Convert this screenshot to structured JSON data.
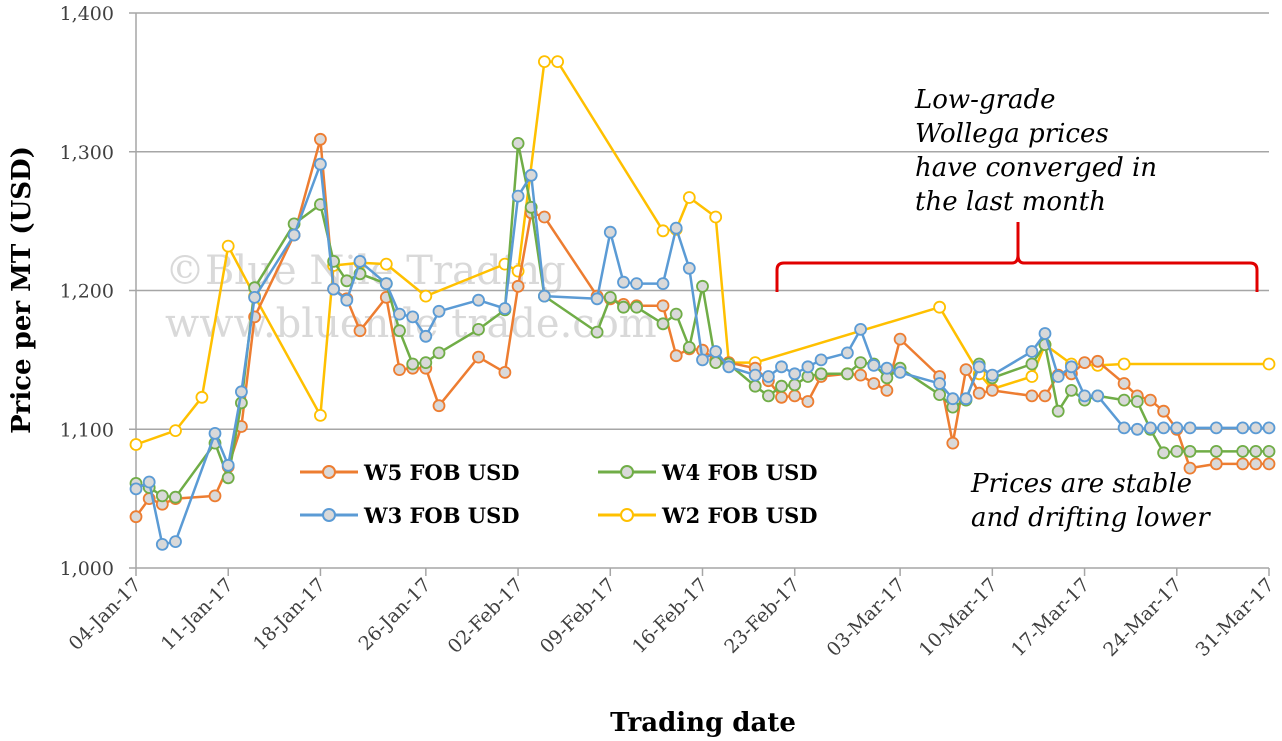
{
  "watermark": {
    "line1": "©Blue Nile Trading",
    "line2": "www.bluenile trade.com"
  },
  "annotations": {
    "top": [
      "Low-grade",
      "Wollega prices",
      "have converged in",
      "the last month"
    ],
    "bottom": [
      "Prices are stable",
      "and drifting lower"
    ]
  },
  "colors": {
    "W5": "#ED7D31",
    "W4": "#70AD47",
    "W3": "#5B9BD5",
    "W2": "#FFC000",
    "bracket": "#E00000",
    "grid": "#A6A6A6"
  },
  "chart_data": {
    "type": "line",
    "title": "",
    "xlabel": "Trading date",
    "ylabel": "Price per MT (USD)",
    "ylim": [
      1000,
      1400
    ],
    "yticks": [
      "1,000",
      "1,100",
      "1,200",
      "1,300",
      "1,400"
    ],
    "grid": true,
    "legend_position": "lower-left",
    "xticks": [
      {
        "label": "04-Jan-17",
        "date": "2017-01-04"
      },
      {
        "label": "11-Jan-17",
        "date": "2017-01-11"
      },
      {
        "label": "18-Jan-17",
        "date": "2017-01-18"
      },
      {
        "label": "26-Jan-17",
        "date": "2017-01-26"
      },
      {
        "label": "02-Feb-17",
        "date": "2017-02-02"
      },
      {
        "label": "09-Feb-17",
        "date": "2017-02-09"
      },
      {
        "label": "16-Feb-17",
        "date": "2017-02-16"
      },
      {
        "label": "23-Feb-17",
        "date": "2017-02-23"
      },
      {
        "label": "03-Mar-17",
        "date": "2017-03-03"
      },
      {
        "label": "10-Mar-17",
        "date": "2017-03-10"
      },
      {
        "label": "17-Mar-17",
        "date": "2017-03-17"
      },
      {
        "label": "24-Mar-17",
        "date": "2017-03-24"
      },
      {
        "label": "31-Mar-17",
        "date": "2017-03-31"
      }
    ],
    "series": [
      {
        "name": "W5 FOB USD",
        "key": "W5",
        "x": [
          "2017-01-04",
          "2017-01-05",
          "2017-01-06",
          "2017-01-07",
          "2017-01-10",
          "2017-01-11",
          "2017-01-12",
          "2017-01-13",
          "2017-01-16",
          "2017-01-18",
          "2017-01-19",
          "2017-01-20",
          "2017-01-21",
          "2017-01-23",
          "2017-01-24",
          "2017-01-25",
          "2017-01-26",
          "2017-01-27",
          "2017-01-30",
          "2017-02-01",
          "2017-02-02",
          "2017-02-03",
          "2017-02-04",
          "2017-02-08",
          "2017-02-09",
          "2017-02-10",
          "2017-02-11",
          "2017-02-13",
          "2017-02-14",
          "2017-02-15",
          "2017-02-16",
          "2017-02-17",
          "2017-02-18",
          "2017-02-20",
          "2017-02-21",
          "2017-02-22",
          "2017-02-23",
          "2017-02-24",
          "2017-02-25",
          "2017-02-27",
          "2017-02-28",
          "2017-03-01",
          "2017-03-02",
          "2017-03-03",
          "2017-03-06",
          "2017-03-07",
          "2017-03-08",
          "2017-03-09",
          "2017-03-10",
          "2017-03-13",
          "2017-03-14",
          "2017-03-15",
          "2017-03-16",
          "2017-03-17",
          "2017-03-18",
          "2017-03-20",
          "2017-03-21",
          "2017-03-22",
          "2017-03-23",
          "2017-03-24",
          "2017-03-25",
          "2017-03-27",
          "2017-03-29",
          "2017-03-30",
          "2017-03-31"
        ],
        "values": [
          1037,
          1050,
          1046,
          1050,
          1052,
          1073,
          1102,
          1181,
          1240,
          1309,
          1201,
          1194,
          1171,
          1195,
          1143,
          1144,
          1144,
          1117,
          1152,
          1141,
          1203,
          1256,
          1253,
          1196,
          1194,
          1190,
          1189,
          1189,
          1153,
          1158,
          1157,
          1150,
          1148,
          1144,
          1135,
          1123,
          1124,
          1120,
          1138,
          1140,
          1139,
          1133,
          1128,
          1165,
          1138,
          1090,
          1143,
          1126,
          1128,
          1124,
          1124,
          1139,
          1140,
          1148,
          1149,
          1133,
          1124,
          1121,
          1113,
          1100,
          1072,
          1075,
          1075,
          1075,
          1075
        ]
      },
      {
        "name": "W4 FOB USD",
        "key": "W4",
        "x": [
          "2017-01-04",
          "2017-01-05",
          "2017-01-06",
          "2017-01-07",
          "2017-01-10",
          "2017-01-11",
          "2017-01-12",
          "2017-01-13",
          "2017-01-16",
          "2017-01-18",
          "2017-01-19",
          "2017-01-20",
          "2017-01-21",
          "2017-01-23",
          "2017-01-24",
          "2017-01-25",
          "2017-01-26",
          "2017-01-27",
          "2017-01-30",
          "2017-02-01",
          "2017-02-02",
          "2017-02-03",
          "2017-02-04",
          "2017-02-08",
          "2017-02-09",
          "2017-02-10",
          "2017-02-11",
          "2017-02-13",
          "2017-02-14",
          "2017-02-15",
          "2017-02-16",
          "2017-02-17",
          "2017-02-18",
          "2017-02-20",
          "2017-02-21",
          "2017-02-22",
          "2017-02-23",
          "2017-02-24",
          "2017-02-25",
          "2017-02-27",
          "2017-02-28",
          "2017-03-01",
          "2017-03-02",
          "2017-03-03",
          "2017-03-06",
          "2017-03-07",
          "2017-03-08",
          "2017-03-09",
          "2017-03-10",
          "2017-03-13",
          "2017-03-14",
          "2017-03-15",
          "2017-03-16",
          "2017-03-17",
          "2017-03-18",
          "2017-03-20",
          "2017-03-21",
          "2017-03-22",
          "2017-03-23",
          "2017-03-24",
          "2017-03-25",
          "2017-03-27",
          "2017-03-29",
          "2017-03-30",
          "2017-03-31"
        ],
        "values": [
          1061,
          1058,
          1052,
          1051,
          1090,
          1065,
          1119,
          1202,
          1248,
          1262,
          1221,
          1207,
          1212,
          1205,
          1171,
          1147,
          1148,
          1155,
          1172,
          1186,
          1306,
          1260,
          1196,
          1170,
          1195,
          1188,
          1188,
          1176,
          1183,
          1159,
          1203,
          1148,
          1147,
          1131,
          1124,
          1131,
          1132,
          1138,
          1140,
          1140,
          1148,
          1147,
          1137,
          1144,
          1125,
          1116,
          1121,
          1147,
          1137,
          1147,
          1161,
          1113,
          1128,
          1121,
          1124,
          1121,
          1120,
          1100,
          1083,
          1084,
          1084,
          1084,
          1084,
          1084,
          1084
        ]
      },
      {
        "name": "W3 FOB USD",
        "key": "W3",
        "x": [
          "2017-01-04",
          "2017-01-05",
          "2017-01-06",
          "2017-01-07",
          "2017-01-10",
          "2017-01-11",
          "2017-01-12",
          "2017-01-13",
          "2017-01-16",
          "2017-01-18",
          "2017-01-19",
          "2017-01-20",
          "2017-01-21",
          "2017-01-23",
          "2017-01-24",
          "2017-01-25",
          "2017-01-26",
          "2017-01-27",
          "2017-01-30",
          "2017-02-01",
          "2017-02-02",
          "2017-02-03",
          "2017-02-04",
          "2017-02-08",
          "2017-02-09",
          "2017-02-10",
          "2017-02-11",
          "2017-02-13",
          "2017-02-14",
          "2017-02-15",
          "2017-02-16",
          "2017-02-17",
          "2017-02-18",
          "2017-02-20",
          "2017-02-21",
          "2017-02-22",
          "2017-02-23",
          "2017-02-24",
          "2017-02-25",
          "2017-02-27",
          "2017-02-28",
          "2017-03-01",
          "2017-03-02",
          "2017-03-03",
          "2017-03-06",
          "2017-03-07",
          "2017-03-08",
          "2017-03-09",
          "2017-03-10",
          "2017-03-13",
          "2017-03-14",
          "2017-03-15",
          "2017-03-16",
          "2017-03-17",
          "2017-03-18",
          "2017-03-20",
          "2017-03-21",
          "2017-03-22",
          "2017-03-23",
          "2017-03-24",
          "2017-03-25",
          "2017-03-27",
          "2017-03-29",
          "2017-03-30",
          "2017-03-31"
        ],
        "values": [
          1057,
          1062,
          1017,
          1019,
          1097,
          1074,
          1127,
          1195,
          1240,
          1291,
          1201,
          1193,
          1221,
          1205,
          1183,
          1181,
          1167,
          1185,
          1193,
          1187,
          1268,
          1283,
          1196,
          1194,
          1242,
          1206,
          1205,
          1205,
          1245,
          1216,
          1150,
          1156,
          1145,
          1139,
          1138,
          1145,
          1140,
          1145,
          1150,
          1155,
          1172,
          1146,
          1144,
          1141,
          1133,
          1122,
          1122,
          1145,
          1139,
          1156,
          1169,
          1138,
          1145,
          1124,
          1124,
          1101,
          1100,
          1101,
          1101,
          1101,
          1101,
          1101,
          1101,
          1101,
          1101
        ]
      },
      {
        "name": "W2 FOB USD",
        "key": "W2",
        "x": [
          "2017-01-04",
          "2017-01-07",
          "2017-01-09",
          "2017-01-11",
          "2017-01-13",
          "2017-01-18",
          "2017-01-19",
          "2017-01-21",
          "2017-01-23",
          "2017-01-26",
          "2017-02-01",
          "2017-02-02",
          "2017-02-04",
          "2017-02-05",
          "2017-02-13",
          "2017-02-14",
          "2017-02-15",
          "2017-02-17",
          "2017-02-18",
          "2017-02-20",
          "2017-03-06",
          "2017-03-09",
          "2017-03-10",
          "2017-03-13",
          "2017-03-14",
          "2017-03-16",
          "2017-03-18",
          "2017-03-20",
          "2017-03-31"
        ],
        "values": [
          1089,
          1099,
          1123,
          1232,
          1196,
          1110,
          1218,
          1220,
          1219,
          1196,
          1219,
          1214,
          1365,
          1365,
          1243,
          1244,
          1267,
          1253,
          1148,
          1148,
          1188,
          1140,
          1129,
          1138,
          1161,
          1147,
          1146,
          1147,
          1147
        ]
      }
    ]
  }
}
